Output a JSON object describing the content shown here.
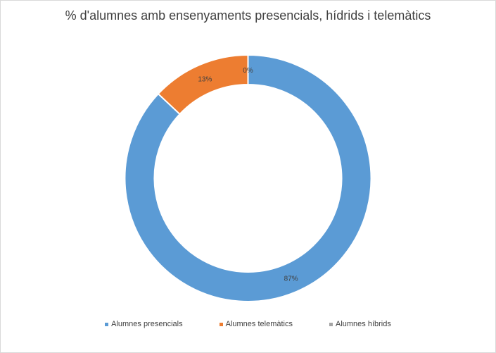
{
  "chart_data": {
    "type": "pie",
    "title": "% d'alumnes amb ensenyaments presencials, hídrids i telemàtics",
    "style": "doughnut",
    "legend_position": "bottom",
    "series": [
      {
        "name": "Alumnes presencials",
        "value": 87,
        "label": "87%",
        "color": "#5B9BD5"
      },
      {
        "name": "Alumnes telemàtics",
        "value": 13,
        "label": "13%",
        "color": "#ED7D31"
      },
      {
        "name": "Alumnes híbrids",
        "value": 0,
        "label": "0%",
        "color": "#A5A5A5"
      }
    ]
  }
}
